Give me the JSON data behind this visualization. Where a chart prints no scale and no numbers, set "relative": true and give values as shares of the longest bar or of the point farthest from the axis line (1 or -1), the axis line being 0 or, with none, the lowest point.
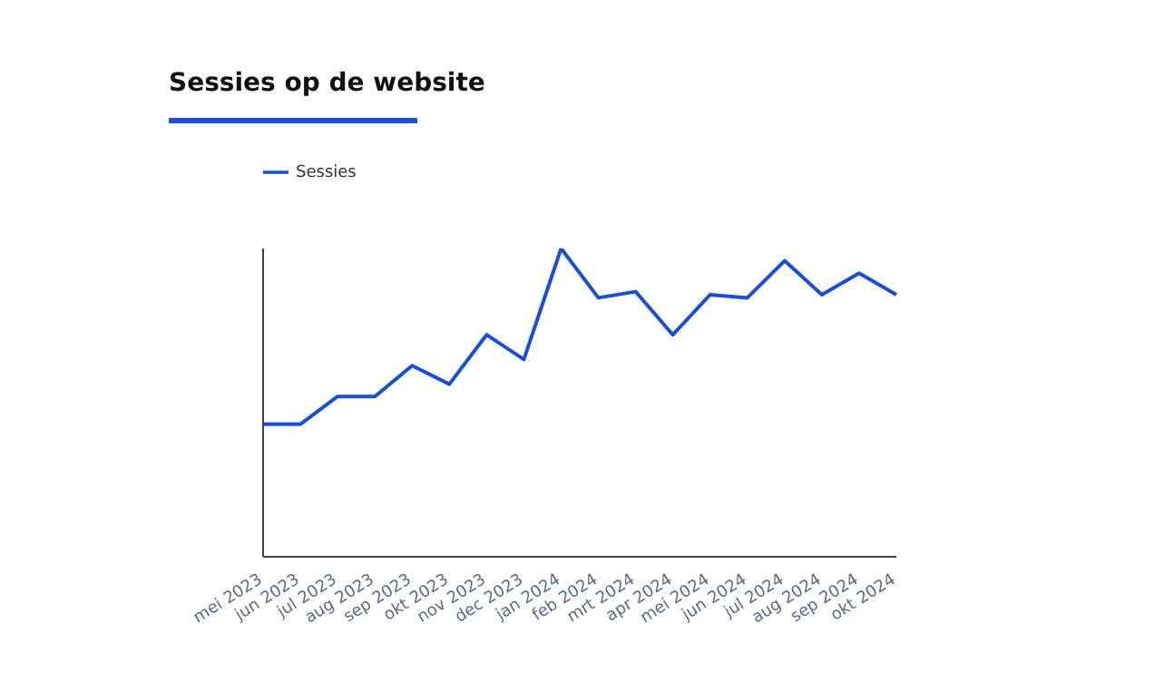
{
  "chart_data": {
    "type": "line",
    "title": "Sessies op de website",
    "relative": true,
    "legend": "top left",
    "grid": false,
    "categories": [
      "mei 2023",
      "jun 2023",
      "jul 2023",
      "aug 2023",
      "sep 2023",
      "okt 2023",
      "nov 2023",
      "dec 2023",
      "jan 2024",
      "feb 2024",
      "mrt 2024",
      "apr 2024",
      "mei 2024",
      "jun 2024",
      "jul 2024",
      "aug 2024",
      "sep 2024",
      "okt 2024"
    ],
    "series": [
      {
        "name": "Sessies",
        "color": "#1a4fd0",
        "values": [
          0.43,
          0.43,
          0.52,
          0.52,
          0.62,
          0.56,
          0.72,
          0.64,
          1,
          0.84,
          0.86,
          0.72,
          0.85,
          0.84,
          0.96,
          0.85,
          0.92,
          0.85
        ]
      }
    ]
  }
}
